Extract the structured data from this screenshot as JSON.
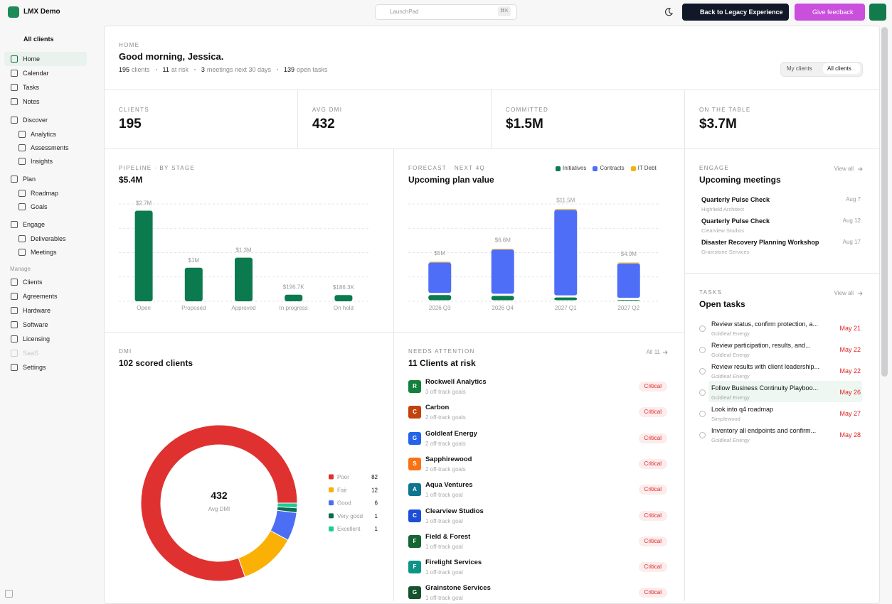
{
  "topbar": {
    "app_name": "LMX Demo",
    "search_placeholder": "LaunchPad",
    "search_shortcut": "⌘K",
    "legacy_button": "Back to Legacy Experience",
    "feedback_button": "Give feedback"
  },
  "sidebar": {
    "client_select": "All clients",
    "nav": [
      {
        "label": "Home",
        "active": true
      },
      {
        "label": "Calendar"
      },
      {
        "label": "Tasks"
      },
      {
        "label": "Notes"
      },
      {
        "label": "Discover",
        "children": [
          {
            "label": "Analytics"
          },
          {
            "label": "Assessments"
          },
          {
            "label": "Insights"
          }
        ]
      },
      {
        "label": "Plan",
        "children": [
          {
            "label": "Roadmap"
          },
          {
            "label": "Goals"
          }
        ]
      },
      {
        "label": "Engage",
        "children": [
          {
            "label": "Deliverables"
          },
          {
            "label": "Meetings"
          }
        ]
      }
    ],
    "manage_heading": "Manage",
    "manage": [
      {
        "label": "Clients"
      },
      {
        "label": "Agreements"
      },
      {
        "label": "Hardware"
      },
      {
        "label": "Software"
      },
      {
        "label": "Licensing"
      },
      {
        "label": "SaaS",
        "disabled": true
      },
      {
        "label": "Settings"
      }
    ]
  },
  "header": {
    "eyebrow": "HOME",
    "title": "Good morning, Jessica.",
    "stats": [
      {
        "value": 195,
        "label": "clients"
      },
      {
        "value": 11,
        "label": "at risk"
      },
      {
        "value": 3,
        "label": "meetings next 30 days"
      },
      {
        "value": 139,
        "label": "open tasks"
      }
    ],
    "toggle": [
      "My clients",
      "All clients"
    ]
  },
  "kpis": [
    {
      "label": "CLIENTS",
      "value": "195"
    },
    {
      "label": "AVG DMI",
      "value": "432"
    },
    {
      "label": "COMMITTED",
      "value": "$1.5M"
    },
    {
      "label": "ON THE TABLE",
      "value": "$3.7M"
    }
  ],
  "pipeline": {
    "eyebrow": "PIPELINE · BY STAGE",
    "total": "$5.4M",
    "chart_data": {
      "type": "bar",
      "categories": [
        "Open",
        "Proposed",
        "Approved",
        "In progress",
        "On hold"
      ],
      "values": [
        2700000,
        1000000,
        1300000,
        196700,
        186300
      ],
      "value_labels": [
        "$2.7M",
        "$1M",
        "$1.3M",
        "$196.7K",
        "$186.3K"
      ],
      "color": "#0b7a4f",
      "ylim": [
        0,
        2900000
      ],
      "grid": true
    }
  },
  "forecast": {
    "eyebrow": "FORECAST · NEXT 4Q",
    "title": "Upcoming plan value",
    "chart_data": {
      "type": "stacked_bar",
      "categories": [
        "2026 Q3",
        "2026 Q4",
        "2027 Q1",
        "2027 Q2"
      ],
      "series": [
        {
          "name": "Initiatives",
          "color": "#0b7a4f",
          "values": [
            900000,
            800000,
            600000,
            300000
          ]
        },
        {
          "name": "Contracts",
          "color": "#4f6ef7",
          "values": [
            4000000,
            5700000,
            10800000,
            4500000
          ]
        },
        {
          "name": "IT Debt",
          "color": "#f5b014",
          "values": [
            100000,
            100000,
            100000,
            100000
          ]
        }
      ],
      "totals": [
        5000000,
        6600000,
        11500000,
        4900000
      ],
      "total_labels": [
        "$5M",
        "$6.6M",
        "$11.5M",
        "$4.9M"
      ],
      "ylim": [
        0,
        12000000
      ],
      "grid": true
    }
  },
  "dmi": {
    "eyebrow": "DMI",
    "title": "102 scored clients",
    "chart_data": {
      "type": "donut",
      "categories": [
        "Poor",
        "Fair",
        "Good",
        "Very good",
        "Excellent"
      ],
      "values": [
        82,
        12,
        6,
        1,
        1
      ],
      "colors": [
        "#e03131",
        "#fab005",
        "#4c6ef5",
        "#0b6e4f",
        "#20c997"
      ],
      "center_value": 432,
      "center_label": "Avg DMI"
    }
  },
  "attention": {
    "eyebrow": "NEEDS ATTENTION",
    "title": "11 Clients at risk",
    "link": "All 11",
    "items": [
      {
        "initial": "R",
        "name": "Rockwell Analytics",
        "detail": "3 off-track goals",
        "status": "Critical",
        "color": "#15803d"
      },
      {
        "initial": "C",
        "name": "Carbon",
        "detail": "2 off-track goals",
        "status": "Critical",
        "color": "#c2410c"
      },
      {
        "initial": "G",
        "name": "Goldleaf Energy",
        "detail": "2 off-track goals",
        "status": "Critical",
        "color": "#2563eb"
      },
      {
        "initial": "S",
        "name": "Sapphirewood",
        "detail": "2 off-track goals",
        "status": "Critical",
        "color": "#f97316"
      },
      {
        "initial": "A",
        "name": "Aqua Ventures",
        "detail": "1 off-track goal",
        "status": "Critical",
        "color": "#0e7490"
      },
      {
        "initial": "C",
        "name": "Clearview Studios",
        "detail": "1 off-track goal",
        "status": "Critical",
        "color": "#1d4ed8"
      },
      {
        "initial": "F",
        "name": "Field & Forest",
        "detail": "1 off-track goal",
        "status": "Critical",
        "color": "#166534"
      },
      {
        "initial": "F",
        "name": "Firelight Services",
        "detail": "1 off-track goal",
        "status": "Critical",
        "color": "#0d9488"
      },
      {
        "initial": "G",
        "name": "Grainstone Services",
        "detail": "1 off-track goal",
        "status": "Critical",
        "color": "#14532d"
      }
    ]
  },
  "meetings": {
    "eyebrow": "ENGAGE",
    "title": "Upcoming meetings",
    "link": "View all",
    "items": [
      {
        "title": "Quarterly Pulse Check",
        "client": "Highfield Architect",
        "date": "Aug 7"
      },
      {
        "title": "Quarterly Pulse Check",
        "client": "Clearview Studios",
        "date": "Aug 12"
      },
      {
        "title": "Disaster Recovery Planning Workshop",
        "client": "Grainstone Services",
        "date": "Aug 17"
      }
    ]
  },
  "tasks": {
    "eyebrow": "TASKS",
    "title": "Open tasks",
    "link": "View all",
    "items": [
      {
        "title": "Review status, confirm protection, a...",
        "client": "Goldleaf Energy",
        "due": "May 21"
      },
      {
        "title": "Review participation, results, and...",
        "client": "Goldleaf Energy",
        "due": "May 22"
      },
      {
        "title": "Review results with client leadership...",
        "client": "Goldleaf Energy",
        "due": "May 22"
      },
      {
        "title": "Follow Business Continuity Playboo...",
        "client": "Goldleaf Energy",
        "due": "May 26",
        "highlighted": true
      },
      {
        "title": "Look into q4 roadmap",
        "client": "Simplewood",
        "due": "May 27"
      },
      {
        "title": "Inventory all endpoints and confirm...",
        "client": "Goldleaf Energy",
        "due": "May 28"
      }
    ]
  }
}
